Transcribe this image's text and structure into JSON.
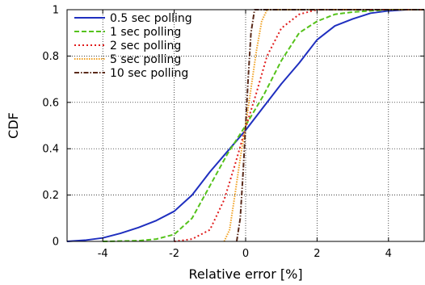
{
  "chart_data": {
    "type": "line",
    "title": "",
    "xlabel": "Relative error [%]",
    "ylabel": "CDF",
    "xlim": [
      -5,
      5
    ],
    "ylim": [
      0,
      1
    ],
    "x_ticks": [
      -4,
      -2,
      0,
      2,
      4
    ],
    "y_ticks": [
      0,
      0.2,
      0.4,
      0.6,
      0.8,
      1
    ],
    "x_tick_labels": [
      "-4",
      "-2",
      "0",
      "2",
      "4"
    ],
    "y_tick_labels": [
      "0",
      "0.2",
      "0.4",
      "0.6",
      "0.8",
      "1"
    ],
    "grid": true,
    "legend_position": "top-left",
    "series": [
      {
        "name": "0.5 sec polling",
        "color": "#1f2fbf",
        "dash": "solid",
        "points": [
          [
            -5,
            0.0
          ],
          [
            -4.5,
            0.005
          ],
          [
            -4,
            0.015
          ],
          [
            -3.5,
            0.035
          ],
          [
            -3,
            0.06
          ],
          [
            -2.5,
            0.09
          ],
          [
            -2,
            0.13
          ],
          [
            -1.5,
            0.2
          ],
          [
            -1,
            0.3
          ],
          [
            -0.5,
            0.39
          ],
          [
            0,
            0.48
          ],
          [
            0.5,
            0.58
          ],
          [
            1,
            0.68
          ],
          [
            1.5,
            0.77
          ],
          [
            2,
            0.87
          ],
          [
            2.5,
            0.93
          ],
          [
            3,
            0.96
          ],
          [
            3.5,
            0.985
          ],
          [
            4,
            0.995
          ],
          [
            4.5,
            1.0
          ],
          [
            5,
            1.0
          ]
        ]
      },
      {
        "name": "1 sec polling",
        "color": "#55c21b",
        "dash": "dashed",
        "points": [
          [
            -4,
            0.0
          ],
          [
            -3,
            0.003
          ],
          [
            -2.5,
            0.01
          ],
          [
            -2,
            0.03
          ],
          [
            -1.5,
            0.1
          ],
          [
            -1,
            0.24
          ],
          [
            -0.5,
            0.38
          ],
          [
            0,
            0.5
          ],
          [
            0.5,
            0.63
          ],
          [
            1,
            0.78
          ],
          [
            1.5,
            0.9
          ],
          [
            2,
            0.95
          ],
          [
            2.5,
            0.98
          ],
          [
            3,
            0.99
          ],
          [
            4,
            1.0
          ],
          [
            5,
            1.0
          ]
        ]
      },
      {
        "name": "2 sec polling",
        "color": "#e01b1b",
        "dash": "dotted",
        "points": [
          [
            -2,
            0.0
          ],
          [
            -1.5,
            0.01
          ],
          [
            -1,
            0.05
          ],
          [
            -0.6,
            0.18
          ],
          [
            -0.3,
            0.33
          ],
          [
            0,
            0.49
          ],
          [
            0.3,
            0.64
          ],
          [
            0.6,
            0.8
          ],
          [
            1,
            0.92
          ],
          [
            1.5,
            0.98
          ],
          [
            2,
            1.0
          ],
          [
            5,
            1.0
          ]
        ]
      },
      {
        "name": "5 sec polling",
        "color": "#f0a020",
        "dash": "densedot",
        "points": [
          [
            -0.6,
            0.0
          ],
          [
            -0.45,
            0.05
          ],
          [
            -0.3,
            0.2
          ],
          [
            -0.15,
            0.36
          ],
          [
            0,
            0.5
          ],
          [
            0.15,
            0.66
          ],
          [
            0.3,
            0.82
          ],
          [
            0.45,
            0.95
          ],
          [
            0.6,
            1.0
          ],
          [
            5,
            1.0
          ]
        ]
      },
      {
        "name": "10 sec polling",
        "color": "#5a2a1a",
        "dash": "dashdot",
        "points": [
          [
            -0.25,
            0.0
          ],
          [
            -0.15,
            0.1
          ],
          [
            -0.07,
            0.3
          ],
          [
            0,
            0.5
          ],
          [
            0.07,
            0.7
          ],
          [
            0.15,
            0.9
          ],
          [
            0.25,
            1.0
          ],
          [
            5,
            1.0
          ]
        ]
      }
    ]
  }
}
